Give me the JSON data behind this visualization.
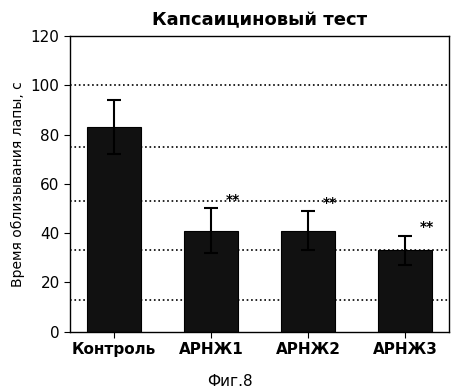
{
  "title": "Капсаициновый тест",
  "ylabel": "Время облизывания лапы, с",
  "categories": [
    "Контроль",
    "АРНЖ1",
    "АРНЖ2",
    "АРНЖ3"
  ],
  "values": [
    83,
    41,
    41,
    33
  ],
  "errors": [
    11,
    9,
    8,
    6
  ],
  "bar_color": "#111111",
  "bar_width": 0.55,
  "ylim": [
    0,
    120
  ],
  "yticks": [
    0,
    20,
    40,
    60,
    80,
    100,
    120
  ],
  "grid_yticks": [
    13,
    33,
    53,
    75,
    100
  ],
  "significance_labels": [
    "",
    "**",
    "**",
    "**"
  ],
  "fig_caption": "Фиг.8",
  "background_color": "#ffffff",
  "title_fontsize": 13,
  "axis_fontsize": 10,
  "tick_fontsize": 11,
  "caption_fontsize": 11
}
